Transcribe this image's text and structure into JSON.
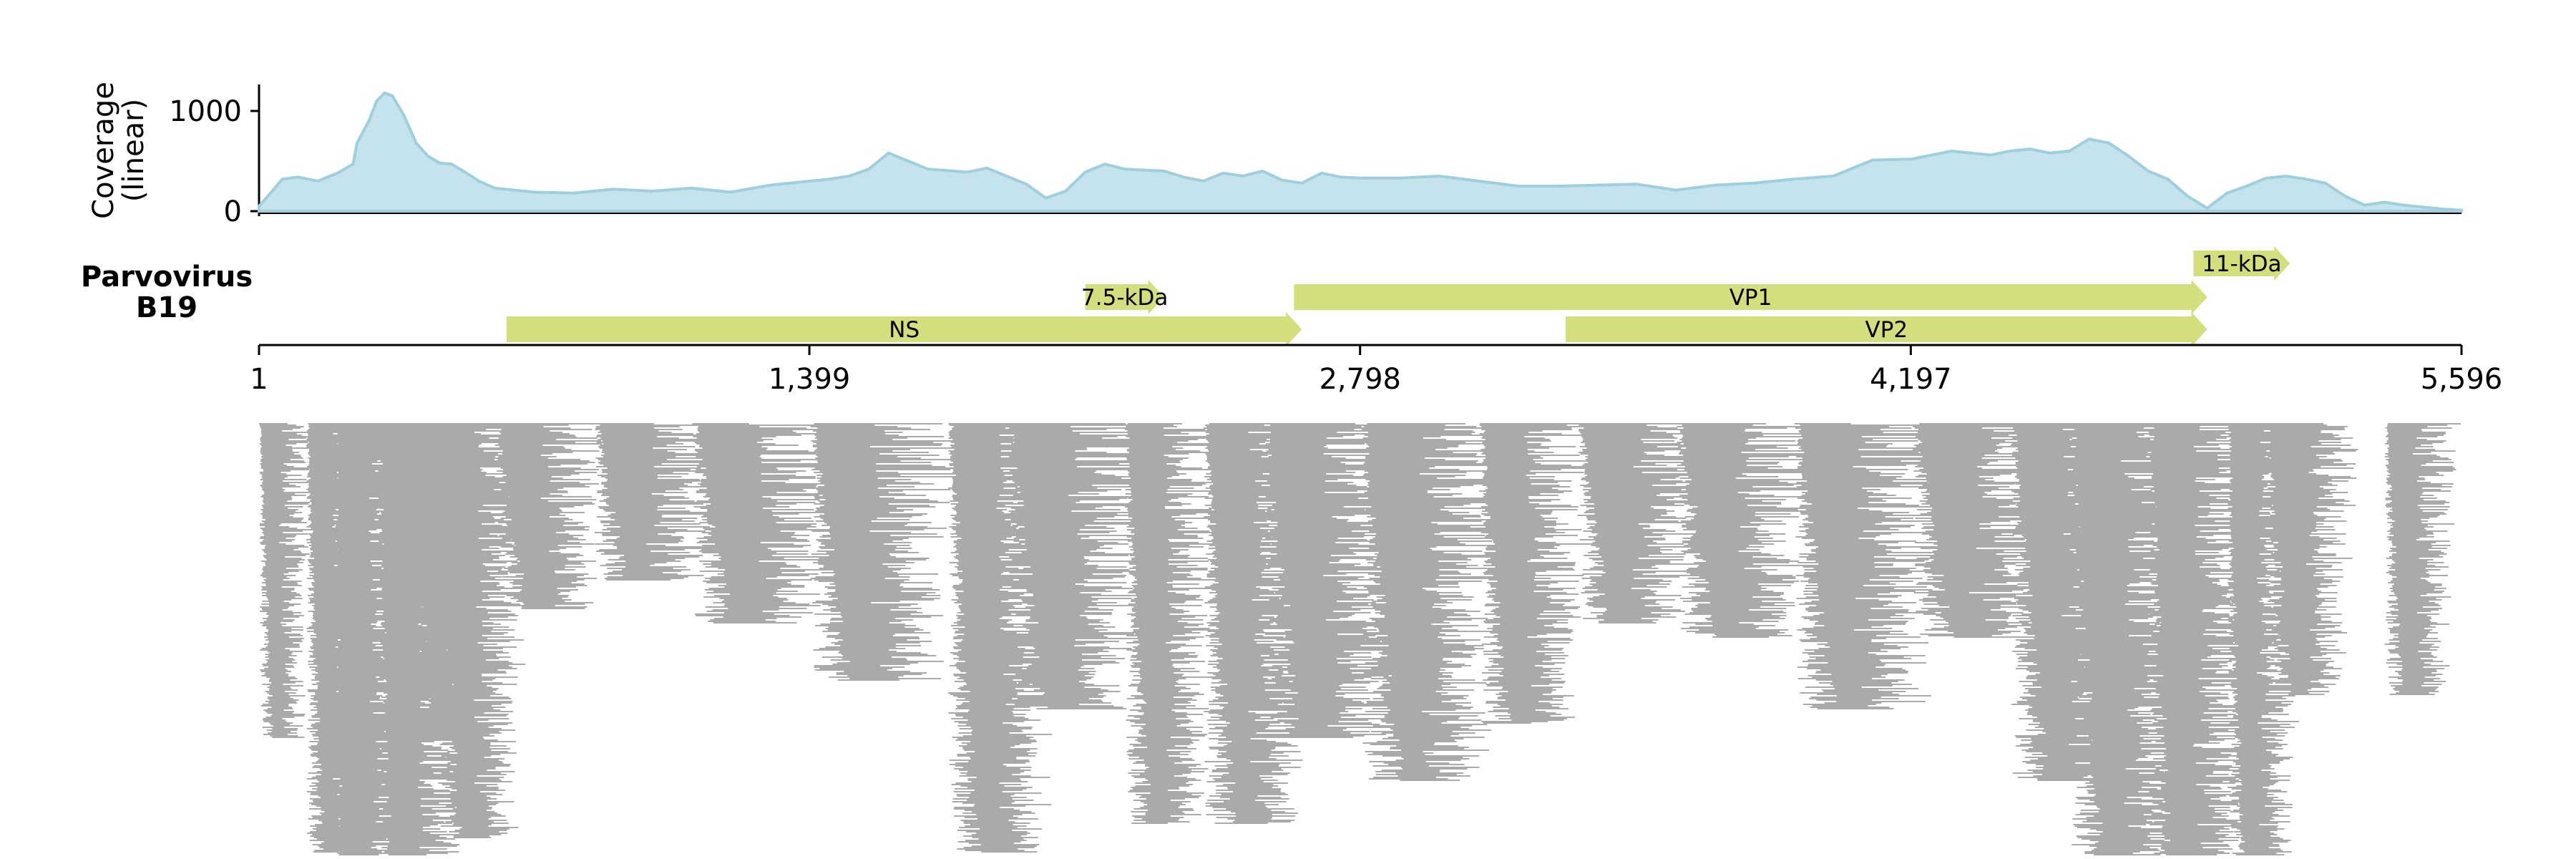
{
  "chart_data": {
    "type": "area",
    "genome": {
      "name_line1": "Parvovirus",
      "name_line2": "B19",
      "length": 5596
    },
    "coverage": {
      "ylabel_line1": "Coverage",
      "ylabel_line2": "(linear)",
      "yticks": [
        0,
        1000
      ],
      "ytick_labels": [
        "0",
        "1000"
      ],
      "ylim": [
        0,
        1250
      ],
      "fill_color": "#c4e3ec",
      "line_color": "#9fcfdf",
      "x": [
        1,
        30,
        60,
        100,
        150,
        200,
        240,
        250,
        280,
        300,
        320,
        340,
        370,
        400,
        430,
        460,
        490,
        520,
        560,
        600,
        650,
        700,
        800,
        900,
        1000,
        1100,
        1200,
        1300,
        1350,
        1400,
        1450,
        1500,
        1550,
        1600,
        1700,
        1800,
        1850,
        1900,
        1950,
        2000,
        2050,
        2100,
        2150,
        2200,
        2250,
        2300,
        2350,
        2400,
        2450,
        2500,
        2550,
        2600,
        2650,
        2700,
        2750,
        2800,
        2900,
        3000,
        3100,
        3200,
        3300,
        3400,
        3500,
        3600,
        3700,
        3800,
        3900,
        4000,
        4100,
        4200,
        4300,
        4400,
        4450,
        4500,
        4550,
        4600,
        4650,
        4700,
        4750,
        4800,
        4850,
        4900,
        4950,
        5000,
        5050,
        5100,
        5150,
        5200,
        5250,
        5300,
        5350,
        5400,
        5450,
        5500,
        5550,
        5596
      ],
      "y": [
        50,
        180,
        320,
        340,
        300,
        380,
        470,
        680,
        900,
        1100,
        1180,
        1150,
        950,
        680,
        550,
        480,
        470,
        400,
        300,
        230,
        210,
        190,
        180,
        220,
        200,
        230,
        190,
        260,
        280,
        300,
        320,
        350,
        420,
        580,
        420,
        390,
        430,
        350,
        270,
        130,
        200,
        390,
        470,
        420,
        410,
        400,
        340,
        300,
        380,
        350,
        400,
        310,
        280,
        380,
        340,
        330,
        330,
        350,
        300,
        250,
        250,
        260,
        270,
        210,
        260,
        280,
        320,
        350,
        510,
        520,
        600,
        560,
        600,
        620,
        580,
        600,
        720,
        680,
        550,
        400,
        320,
        150,
        30,
        180,
        250,
        330,
        350,
        320,
        280,
        150,
        60,
        90,
        60,
        40,
        20,
        10
      ],
      "x_tick_values": [
        1,
        1399,
        2798,
        4197,
        5596
      ],
      "x_tick_labels": [
        "1",
        "1,399",
        "2,798",
        "4,197",
        "5,596"
      ]
    },
    "genes": [
      {
        "name": "NS",
        "start": 630,
        "end": 2650,
        "row": 0,
        "label": "NS"
      },
      {
        "name": "7.5-kDa",
        "start": 2100,
        "end": 2300,
        "row": 1,
        "label": "7.5-kDa"
      },
      {
        "name": "VP1",
        "start": 2630,
        "end": 4950,
        "row": 1,
        "label": "VP1"
      },
      {
        "name": "VP2",
        "start": 3320,
        "end": 4950,
        "row": 0,
        "label": "VP2"
      },
      {
        "name": "11-kDa",
        "start": 4915,
        "end": 5160,
        "row": 2,
        "label": "11-kDa"
      }
    ],
    "gene_color": "#d4de7c",
    "read_color": "#aaaaaa",
    "reads": {
      "clusters": [
        {
          "start": 1,
          "end": 140,
          "depth": 220,
          "stack": 220
        },
        {
          "start": 120,
          "end": 300,
          "depth": 300,
          "stack": 300
        },
        {
          "start": 190,
          "end": 430,
          "depth": 1190,
          "stack": 1190
        },
        {
          "start": 300,
          "end": 560,
          "depth": 600,
          "stack": 600
        },
        {
          "start": 390,
          "end": 580,
          "depth": 220,
          "stack": 220
        },
        {
          "start": 450,
          "end": 700,
          "depth": 290,
          "stack": 290
        },
        {
          "start": 600,
          "end": 900,
          "depth": 130,
          "stack": 130
        },
        {
          "start": 850,
          "end": 1200,
          "depth": 110,
          "stack": 110
        },
        {
          "start": 1100,
          "end": 1500,
          "depth": 140,
          "stack": 140
        },
        {
          "start": 1400,
          "end": 1800,
          "depth": 180,
          "stack": 180
        },
        {
          "start": 1750,
          "end": 2060,
          "depth": 300,
          "stack": 300
        },
        {
          "start": 1900,
          "end": 2300,
          "depth": 200,
          "stack": 200
        },
        {
          "start": 2200,
          "end": 2450,
          "depth": 280,
          "stack": 280
        },
        {
          "start": 2400,
          "end": 2700,
          "depth": 280,
          "stack": 280
        },
        {
          "start": 2550,
          "end": 2950,
          "depth": 220,
          "stack": 220
        },
        {
          "start": 2800,
          "end": 3200,
          "depth": 250,
          "stack": 250
        },
        {
          "start": 3100,
          "end": 3400,
          "depth": 210,
          "stack": 210
        },
        {
          "start": 3350,
          "end": 3700,
          "depth": 140,
          "stack": 140
        },
        {
          "start": 3600,
          "end": 4000,
          "depth": 150,
          "stack": 150
        },
        {
          "start": 3900,
          "end": 4300,
          "depth": 200,
          "stack": 200
        },
        {
          "start": 4200,
          "end": 4600,
          "depth": 150,
          "stack": 150
        },
        {
          "start": 4450,
          "end": 4800,
          "depth": 250,
          "stack": 250
        },
        {
          "start": 4600,
          "end": 4950,
          "depth": 350,
          "stack": 350
        },
        {
          "start": 4800,
          "end": 5100,
          "depth": 430,
          "stack": 430
        },
        {
          "start": 5000,
          "end": 5200,
          "depth": 380,
          "stack": 380
        },
        {
          "start": 5100,
          "end": 5350,
          "depth": 190,
          "stack": 190
        },
        {
          "start": 5400,
          "end": 5596,
          "depth": 190,
          "stack": 190
        }
      ]
    }
  }
}
